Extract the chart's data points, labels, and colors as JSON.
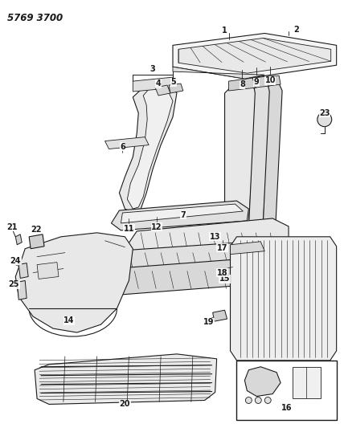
{
  "title": "5769 3700",
  "bg_color": "#ffffff",
  "lc": "#1a1a1a",
  "fig_width": 4.28,
  "fig_height": 5.33,
  "dpi": 100,
  "label_fs": 7.0,
  "title_fs": 8.5
}
